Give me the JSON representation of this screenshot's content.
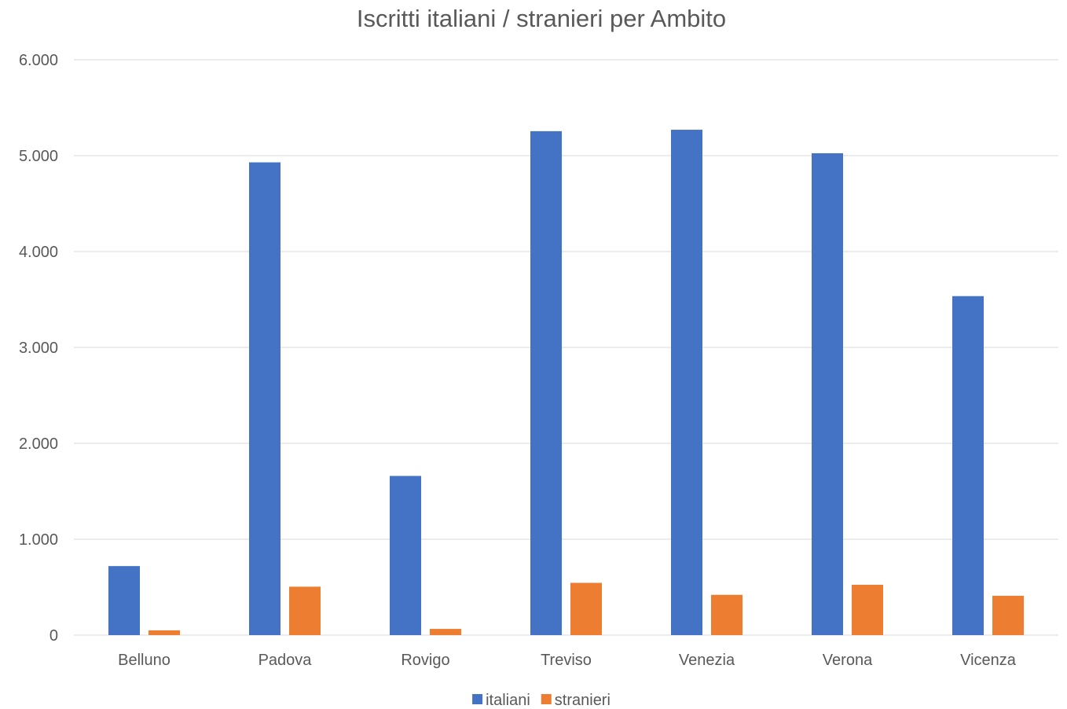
{
  "chart_data": {
    "type": "bar",
    "title": "Iscritti italiani / stranieri per Ambito",
    "xlabel": "",
    "ylabel": "",
    "categories": [
      "Belluno",
      "Padova",
      "Rovigo",
      "Treviso",
      "Venezia",
      "Verona",
      "Vicenza"
    ],
    "series": [
      {
        "name": "italiani",
        "color": "#4472c4",
        "values": [
          720,
          4930,
          1660,
          5255,
          5270,
          5025,
          3535
        ]
      },
      {
        "name": "stranieri",
        "color": "#ed7d31",
        "values": [
          50,
          505,
          65,
          545,
          420,
          525,
          410
        ]
      }
    ],
    "ylim": [
      0,
      6000
    ],
    "yticks": [
      0,
      1000,
      2000,
      3000,
      4000,
      5000,
      6000
    ],
    "ytick_labels": [
      "0",
      "1.000",
      "2.000",
      "3.000",
      "4.000",
      "5.000",
      "6.000"
    ],
    "grid": true,
    "legend_position": "bottom"
  }
}
